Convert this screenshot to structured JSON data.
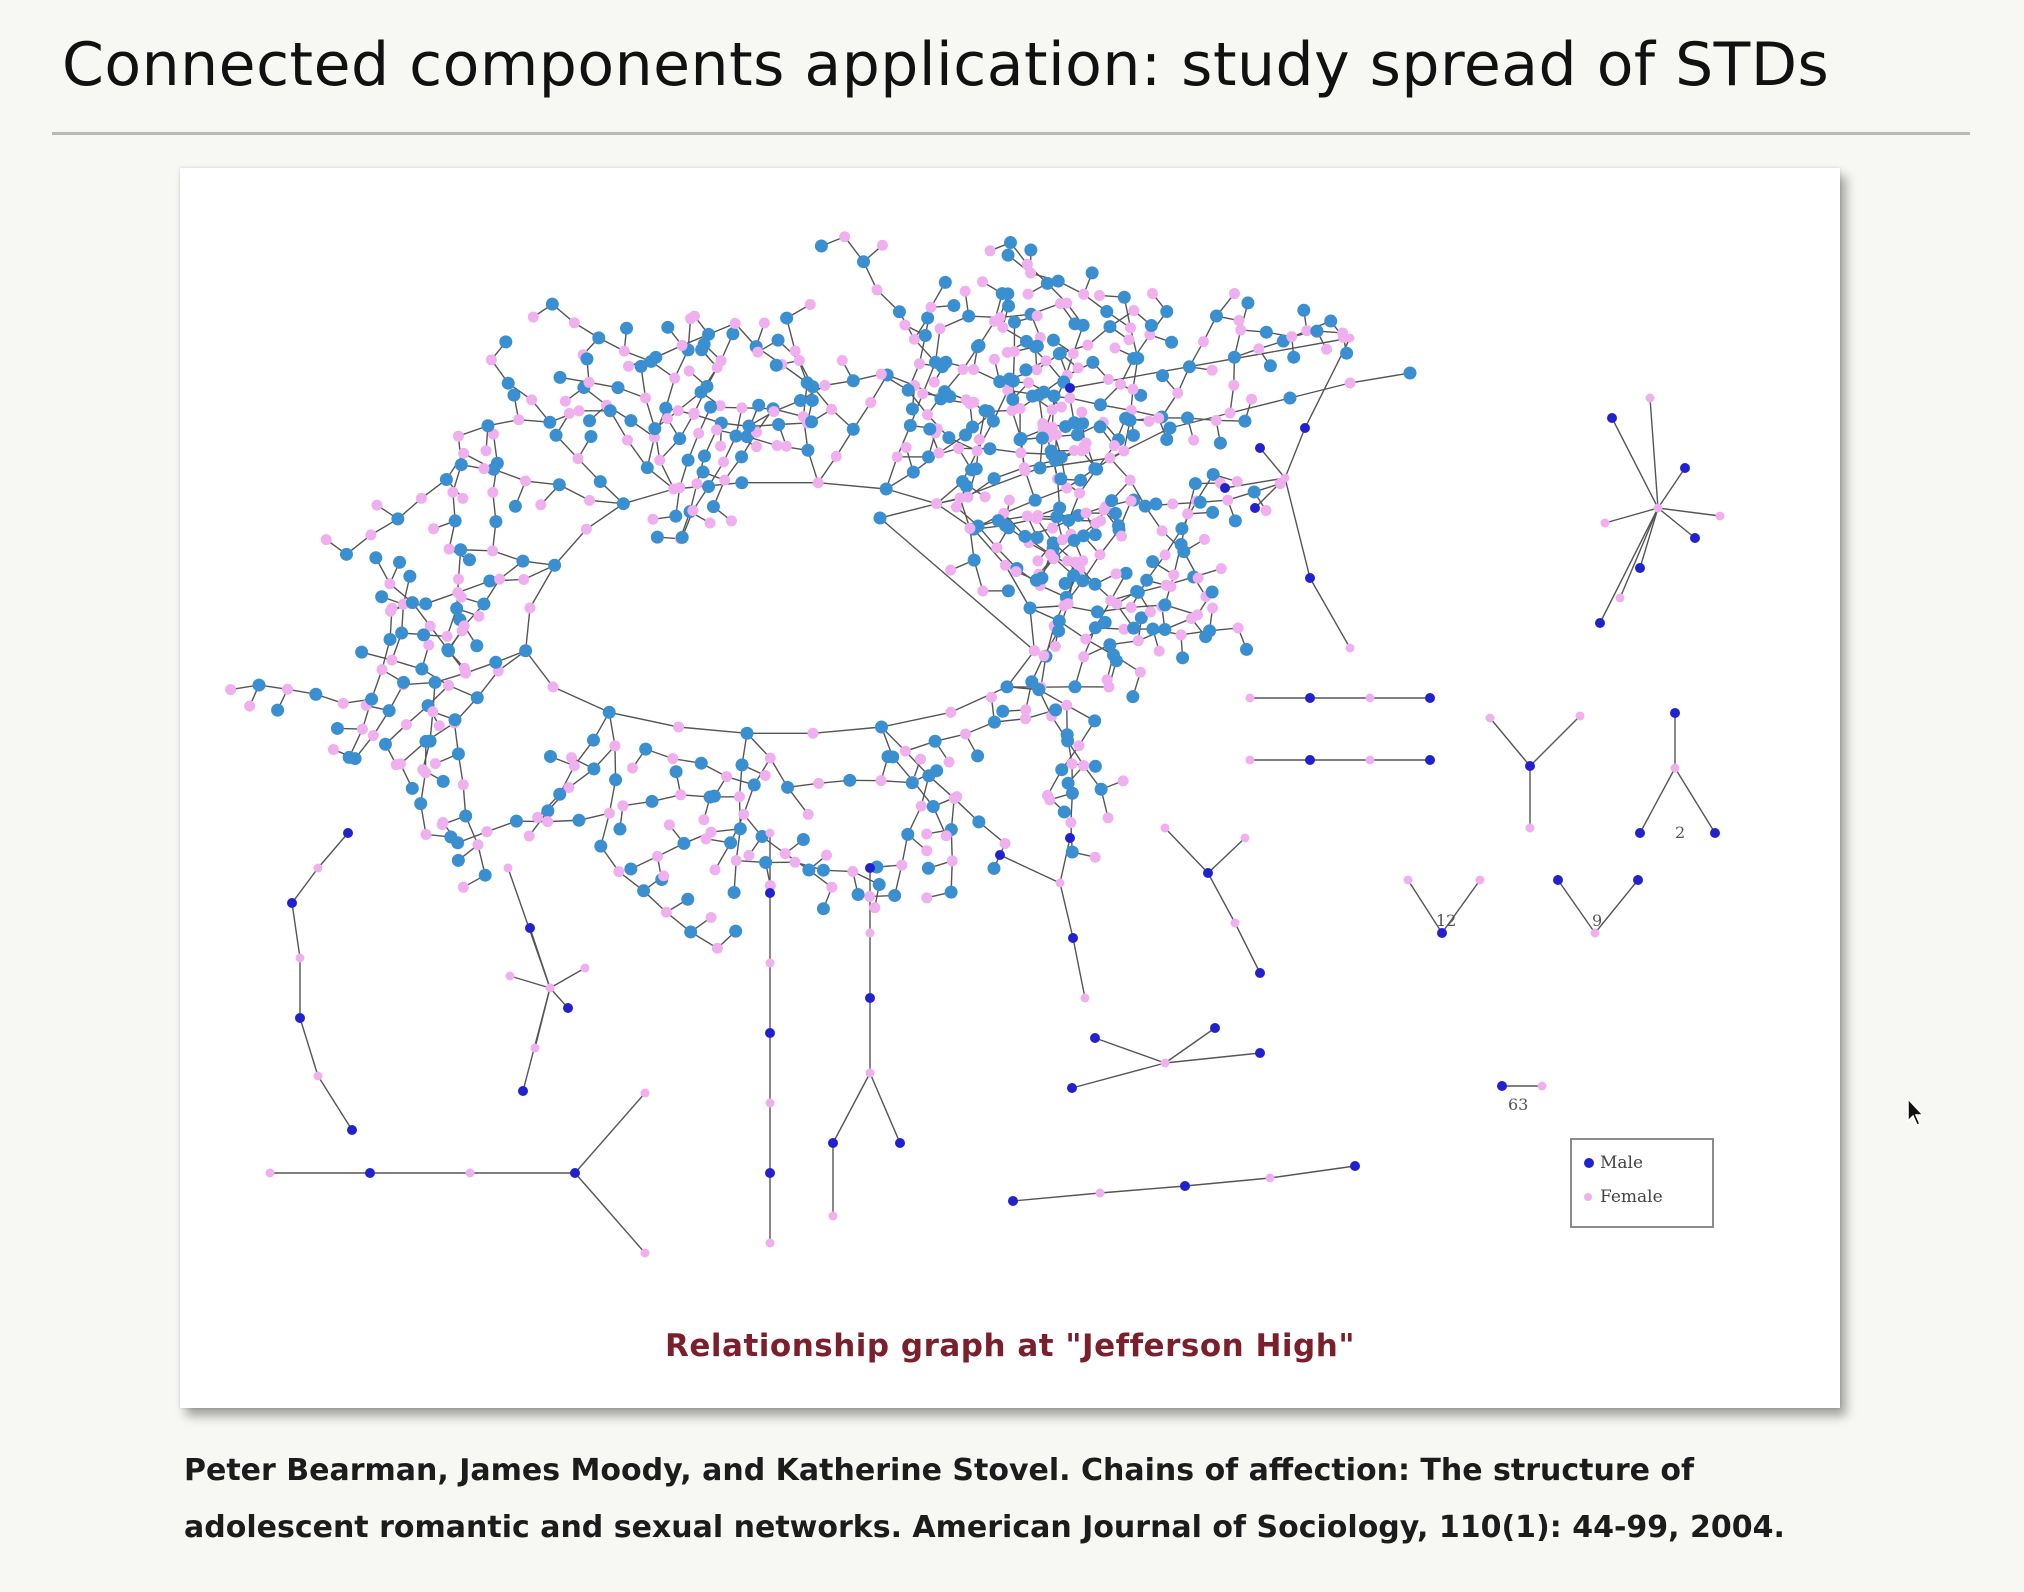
{
  "slide": {
    "title": "Connected components application:  study spread of STDs"
  },
  "figure": {
    "caption": "Relationship graph at \"Jefferson High\"",
    "legend": {
      "male_label": "Male",
      "female_label": "Female"
    },
    "component_labels": [
      "12",
      "9",
      "2",
      "63"
    ]
  },
  "citation": {
    "line1": "Peter Bearman, James Moody, and Katherine Stovel. Chains of affection: The structure of",
    "line2": "adolescent romantic and sexual networks. American Journal of Sociology, 110(1): 44-99, 2004."
  },
  "colors": {
    "male": "#2222cc",
    "female": "#f0b0f0",
    "giant_male": "#3a8fd0",
    "edge": "#555555",
    "caption": "#7a1f2b"
  },
  "icons": {
    "cursor": "mouse-pointer-icon"
  }
}
